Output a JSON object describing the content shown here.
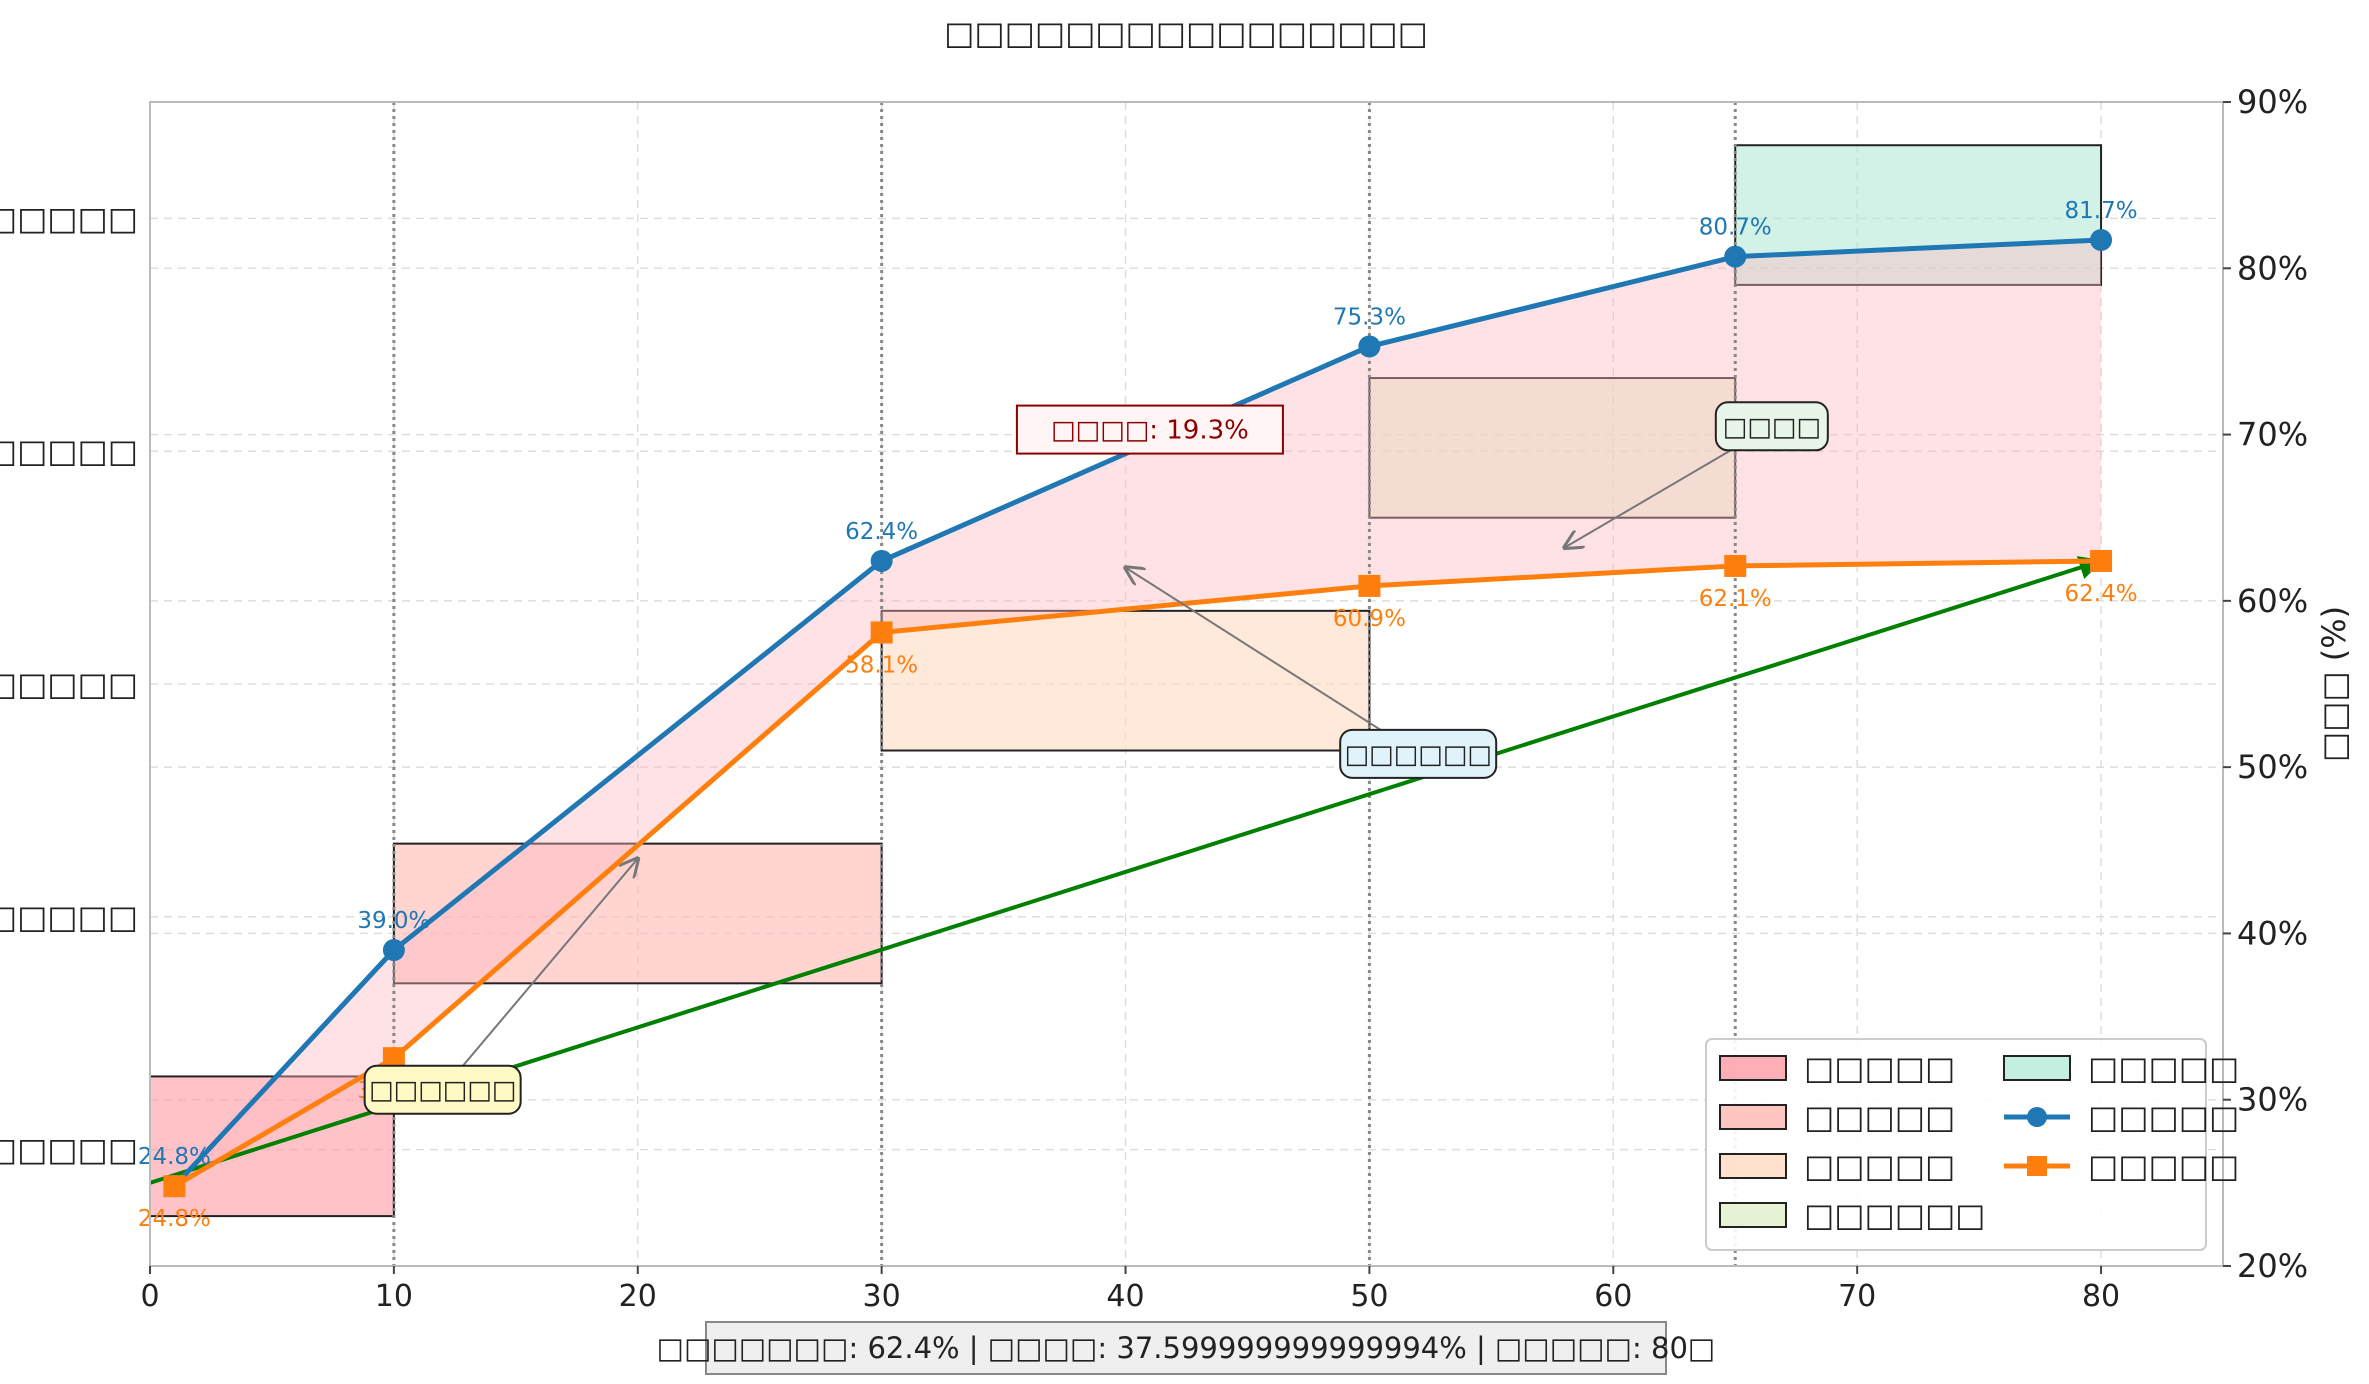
{
  "chart_data": {
    "type": "line",
    "title": "□□□□□□□□□□□□□□□□",
    "xlabel": "□□□□ (□)",
    "ylabel_right": "□□□ (%)",
    "xlim": [
      0,
      85
    ],
    "ylim": [
      20,
      90
    ],
    "x_ticks": [
      0,
      10,
      20,
      30,
      40,
      50,
      60,
      70,
      80
    ],
    "y_ticks": [
      20,
      30,
      40,
      50,
      60,
      70,
      80,
      90
    ],
    "y_tick_labels": [
      "20%",
      "30%",
      "40%",
      "50%",
      "60%",
      "70%",
      "80%",
      "90%"
    ],
    "left_axis_labels": [
      {
        "label": "□□□□□",
        "y": 27.0
      },
      {
        "label": "□□□□□",
        "y": 41.0
      },
      {
        "label": "□□□□□",
        "y": 55.0
      },
      {
        "label": "□□□□□□",
        "y": 69.0
      },
      {
        "label": "□□□□□",
        "y": 83.0
      }
    ],
    "phase_separators_x": [
      10,
      30,
      50,
      65
    ],
    "phases": [
      {
        "name": "□□□□□",
        "x0": 0,
        "x1": 10,
        "y0": 23,
        "y1": 31.4,
        "color": "#ff9aa2"
      },
      {
        "name": "□□□□□",
        "x0": 10,
        "x1": 30,
        "y0": 37,
        "y1": 45.4,
        "color": "#ffb7b2"
      },
      {
        "name": "□□□□□",
        "x0": 30,
        "x1": 50,
        "y0": 51,
        "y1": 59.4,
        "color": "#ffdac1"
      },
      {
        "name": "□□□□□□",
        "x0": 50,
        "x1": 65,
        "y0": 65,
        "y1": 73.4,
        "color": "#e2f0cb"
      },
      {
        "name": "□□□□□",
        "x0": 65,
        "x1": 80,
        "y0": 79,
        "y1": 87.4,
        "color": "#b5ead7"
      }
    ],
    "series": [
      {
        "name": "□□□□□",
        "color": "#1f77b4",
        "marker": "circle",
        "x": [
          1,
          10,
          30,
          50,
          65,
          80
        ],
        "y": [
          24.8,
          39.0,
          62.4,
          75.3,
          80.7,
          81.7
        ],
        "labels": [
          "24.8%",
          "39.0%",
          "62.4%",
          "75.3%",
          "80.7%",
          "81.7%"
        ]
      },
      {
        "name": "□□□□□",
        "color": "#ff7f0e",
        "marker": "square",
        "x": [
          1,
          10,
          30,
          50,
          65,
          80
        ],
        "y": [
          24.8,
          32.5,
          58.1,
          60.9,
          62.1,
          62.4
        ],
        "labels": [
          "24.8%",
          "32.5%",
          "58.1%",
          "60.9%",
          "62.1%",
          "62.4%"
        ]
      }
    ],
    "trend_arrow": {
      "x0": 0,
      "y0": 25.0,
      "x1": 80,
      "y1": 62.4,
      "color": "#008000"
    },
    "annotations": [
      {
        "text": "□□□□: 19.3%",
        "x": 41,
        "y": 70.3,
        "style": "gap"
      },
      {
        "text": "□□□□",
        "x": 66.5,
        "y": 70.5,
        "style": "green",
        "arrow_to": [
          58,
          63.2
        ]
      },
      {
        "text": "□□□□□□",
        "x": 52,
        "y": 50.8,
        "style": "blue",
        "arrow_to": [
          40,
          62.0
        ]
      },
      {
        "text": "□□□□□□",
        "x": 12,
        "y": 30.6,
        "style": "yellow",
        "arrow_to": [
          20,
          44.5
        ]
      }
    ],
    "legend": {
      "placement": "lower-right",
      "columns": [
        [
          "□□□□□",
          "□□□□□",
          "□□□□□",
          "□□□□□□"
        ],
        [
          "□□□□□",
          "□□□□□",
          "□□□□□"
        ]
      ]
    },
    "footer": "□□□□□□□: 62.4% | □□□□: 37.599999999999994% | □□□□□: 80□",
    "colors": {
      "gap_fill": "#ffb6c1",
      "grid": "#dddddd"
    }
  }
}
